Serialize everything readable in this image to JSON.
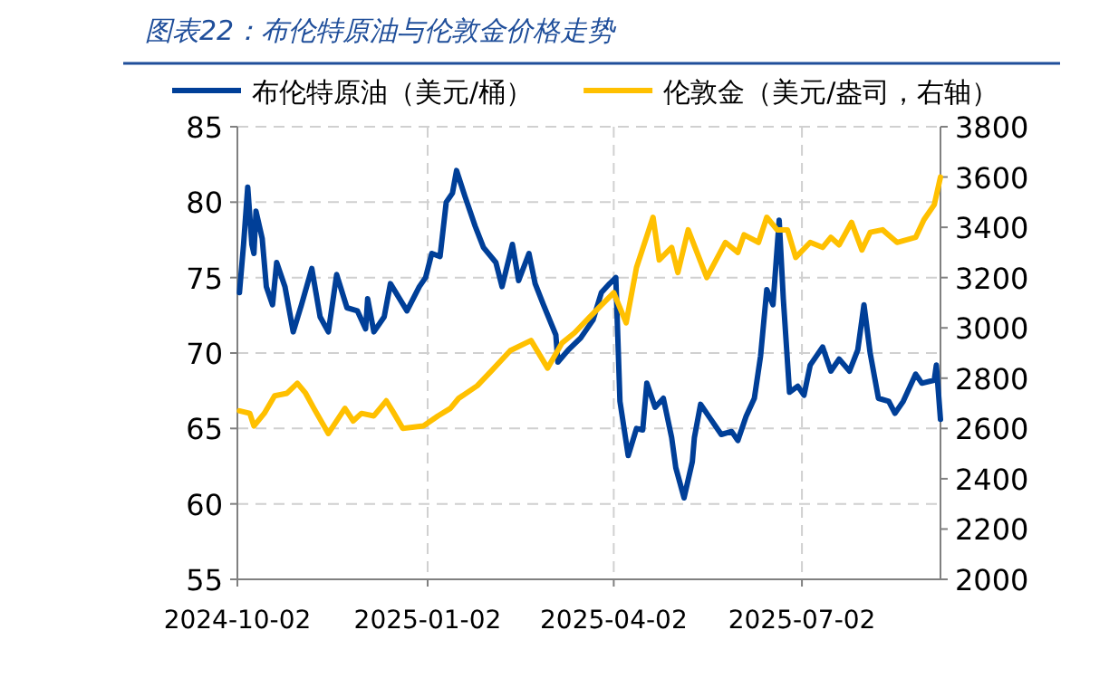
{
  "chart_data": {
    "type": "line",
    "title": "图表22：布伦特原油与伦敦金价格走势",
    "legend": "top",
    "grid": true,
    "xlim": [
      "2024-10-02",
      "2025-09-07"
    ],
    "xticks": [
      "2024-10-02",
      "2025-01-02",
      "2025-04-02",
      "2025-07-02"
    ],
    "ylim": [
      55,
      85
    ],
    "yticks": [
      55,
      60,
      65,
      70,
      75,
      80,
      85
    ],
    "y2lim": [
      2000,
      3800
    ],
    "y2ticks": [
      2000,
      2200,
      2400,
      2600,
      2800,
      3000,
      3200,
      3400,
      3600,
      3800
    ],
    "series": [
      {
        "name": "布伦特原油（美元/桶）",
        "color": "#003f98",
        "x": [
          "2024-10-03",
          "2024-10-05",
          "2024-10-07",
          "2024-10-09",
          "2024-10-10",
          "2024-10-11",
          "2024-10-14",
          "2024-10-16",
          "2024-10-19",
          "2024-10-21",
          "2024-10-25",
          "2024-10-29",
          "2024-11-02",
          "2024-11-07",
          "2024-11-11",
          "2024-11-15",
          "2024-11-19",
          "2024-11-24",
          "2024-11-29",
          "2024-12-03",
          "2024-12-04",
          "2024-12-07",
          "2024-12-12",
          "2024-12-15",
          "2024-12-23",
          "2024-12-29",
          "2025-01-01",
          "2025-01-04",
          "2025-01-08",
          "2025-01-11",
          "2025-01-14",
          "2025-01-16",
          "2025-01-20",
          "2025-01-25",
          "2025-01-29",
          "2025-02-04",
          "2025-02-07",
          "2025-02-12",
          "2025-02-15",
          "2025-02-20",
          "2025-02-23",
          "2025-02-27",
          "2025-03-05",
          "2025-03-06",
          "2025-03-11",
          "2025-03-17",
          "2025-03-23",
          "2025-03-27",
          "2025-03-31",
          "2025-04-03",
          "2025-04-05",
          "2025-04-09",
          "2025-04-13",
          "2025-04-16",
          "2025-04-18",
          "2025-04-22",
          "2025-04-26",
          "2025-04-30",
          "2025-05-02",
          "2025-05-06",
          "2025-05-10",
          "2025-05-11",
          "2025-05-14",
          "2025-05-19",
          "2025-05-24",
          "2025-05-29",
          "2025-06-01",
          "2025-06-05",
          "2025-06-09",
          "2025-06-12",
          "2025-06-15",
          "2025-06-18",
          "2025-06-21",
          "2025-06-23",
          "2025-06-26",
          "2025-06-30",
          "2025-07-03",
          "2025-07-06",
          "2025-07-12",
          "2025-07-16",
          "2025-07-20",
          "2025-07-25",
          "2025-07-29",
          "2025-08-01",
          "2025-08-04",
          "2025-08-08",
          "2025-08-13",
          "2025-08-16",
          "2025-08-20",
          "2025-08-26",
          "2025-08-29",
          "2025-09-04",
          "2025-09-05",
          "2025-09-07"
        ],
        "values": [
          74.0,
          77.2,
          81.0,
          77.2,
          76.6,
          79.4,
          77.6,
          74.4,
          73.2,
          76.0,
          74.4,
          71.4,
          73.2,
          75.6,
          72.4,
          71.4,
          75.2,
          73.0,
          72.8,
          71.6,
          73.6,
          71.4,
          72.4,
          74.6,
          72.8,
          74.4,
          75.0,
          76.6,
          76.4,
          80.0,
          80.6,
          82.1,
          80.4,
          78.4,
          77.0,
          76.0,
          74.4,
          77.2,
          74.8,
          76.6,
          74.6,
          73.2,
          71.2,
          69.4,
          70.2,
          71.0,
          72.2,
          74.0,
          74.6,
          75.0,
          66.8,
          63.2,
          65.0,
          64.9,
          68.0,
          66.4,
          67.0,
          64.4,
          62.4,
          60.4,
          62.8,
          64.4,
          66.6,
          65.6,
          64.6,
          64.8,
          64.2,
          65.8,
          67.0,
          69.8,
          74.2,
          73.2,
          78.8,
          73.6,
          67.4,
          67.8,
          67.2,
          69.2,
          70.4,
          68.8,
          69.6,
          68.8,
          70.2,
          73.2,
          70.0,
          67.0,
          66.8,
          66.0,
          66.8,
          68.6,
          68.0,
          68.2,
          69.2,
          65.6
        ]
      },
      {
        "name": "伦敦金（美元/盎司，右轴）",
        "color": "#ffc000",
        "axis": "y2",
        "x": [
          "2024-10-03",
          "2024-10-08",
          "2024-10-10",
          "2024-10-15",
          "2024-10-20",
          "2024-10-26",
          "2024-10-31",
          "2024-11-04",
          "2024-11-08",
          "2024-11-15",
          "2024-11-23",
          "2024-11-27",
          "2024-12-01",
          "2024-12-07",
          "2024-12-13",
          "2024-12-16",
          "2024-12-21",
          "2024-12-31",
          "2025-01-07",
          "2025-01-13",
          "2025-01-17",
          "2025-01-26",
          "2025-02-02",
          "2025-02-11",
          "2025-02-21",
          "2025-03-01",
          "2025-03-08",
          "2025-03-14",
          "2025-03-21",
          "2025-03-27",
          "2025-04-02",
          "2025-04-08",
          "2025-04-13",
          "2025-04-21",
          "2025-04-24",
          "2025-04-30",
          "2025-05-03",
          "2025-05-08",
          "2025-05-17",
          "2025-05-26",
          "2025-06-01",
          "2025-06-04",
          "2025-06-11",
          "2025-06-15",
          "2025-06-20",
          "2025-06-25",
          "2025-06-29",
          "2025-07-06",
          "2025-07-12",
          "2025-07-16",
          "2025-07-20",
          "2025-07-26",
          "2025-07-31",
          "2025-08-04",
          "2025-08-10",
          "2025-08-17",
          "2025-08-26",
          "2025-08-30",
          "2025-09-04",
          "2025-09-07"
        ],
        "values": [
          2670,
          2660,
          2610,
          2660,
          2730,
          2740,
          2780,
          2740,
          2680,
          2580,
          2680,
          2630,
          2660,
          2650,
          2710,
          2670,
          2600,
          2610,
          2650,
          2680,
          2720,
          2770,
          2830,
          2910,
          2950,
          2840,
          2940,
          2980,
          3040,
          3090,
          3140,
          3020,
          3240,
          3440,
          3270,
          3320,
          3220,
          3390,
          3200,
          3340,
          3300,
          3370,
          3340,
          3440,
          3390,
          3390,
          3280,
          3340,
          3320,
          3360,
          3330,
          3420,
          3310,
          3380,
          3390,
          3340,
          3360,
          3430,
          3490,
          3600
        ]
      }
    ]
  }
}
